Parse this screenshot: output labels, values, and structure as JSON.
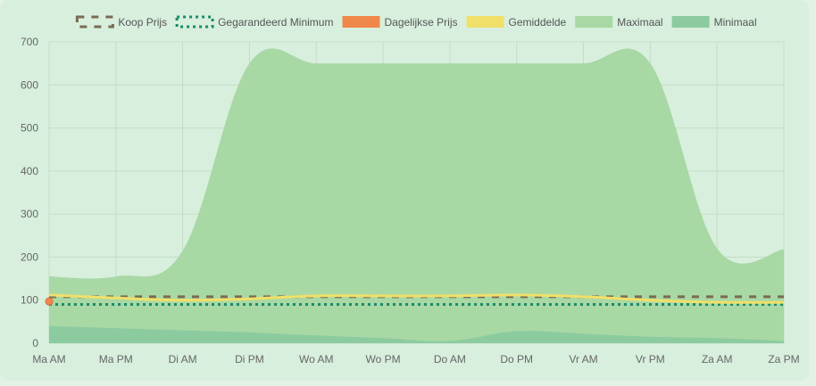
{
  "chart_data": {
    "type": "area",
    "title": "",
    "xlabel": "",
    "ylabel": "",
    "ylim": [
      0,
      700
    ],
    "yticks": [
      0,
      100,
      200,
      300,
      400,
      500,
      600,
      700
    ],
    "grid": true,
    "legend_position": "top",
    "categories": [
      "Ma AM",
      "Ma PM",
      "Di AM",
      "Di PM",
      "Wo AM",
      "Wo PM",
      "Do AM",
      "Do PM",
      "Vr AM",
      "Vr PM",
      "Za AM",
      "Za PM"
    ],
    "series": [
      {
        "name": "Koop Prijs",
        "type": "line",
        "style": "dashed",
        "color": "#7a6a55",
        "values": [
          108,
          108,
          108,
          108,
          108,
          108,
          108,
          108,
          108,
          108,
          108,
          108
        ]
      },
      {
        "name": "Gegarandeerd Minimum",
        "type": "line",
        "style": "dotted",
        "color": "#1a8a6a",
        "values": [
          90,
          90,
          90,
          90,
          90,
          90,
          90,
          90,
          90,
          90,
          90,
          90
        ]
      },
      {
        "name": "Dagelijkse Prijs",
        "type": "point",
        "color": "#f0884a",
        "values": [
          97,
          null,
          null,
          null,
          null,
          null,
          null,
          null,
          null,
          null,
          null,
          null
        ]
      },
      {
        "name": "Gemiddelde",
        "type": "line",
        "style": "solid",
        "color": "#f0e06a",
        "values": [
          112,
          105,
          100,
          103,
          110,
          110,
          110,
          112,
          108,
          100,
          95,
          95
        ]
      },
      {
        "name": "Maximaal",
        "type": "area",
        "color": "#a8d8a4",
        "values": [
          155,
          155,
          215,
          650,
          650,
          650,
          650,
          650,
          650,
          650,
          220,
          218
        ]
      },
      {
        "name": "Minimaal",
        "type": "area",
        "color": "#8ccba0",
        "values": [
          40,
          35,
          30,
          25,
          18,
          12,
          5,
          28,
          22,
          15,
          12,
          5
        ]
      }
    ]
  }
}
